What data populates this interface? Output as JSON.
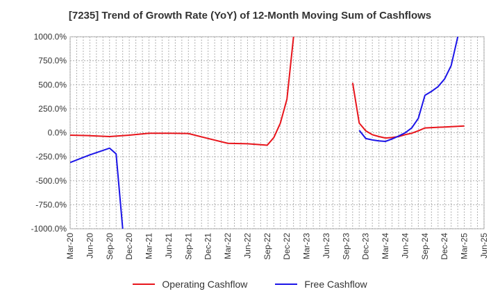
{
  "chart_data": {
    "type": "line",
    "title": "[7235]  Trend of Growth Rate (YoY) of 12-Month Moving Sum of Cashflows",
    "xlabel": "",
    "ylabel": "",
    "ylim": [
      -1000,
      1000
    ],
    "yticks": [
      "1000.0%",
      "750.0%",
      "500.0%",
      "250.0%",
      "0.0%",
      "-250.0%",
      "-500.0%",
      "-750.0%",
      "-1000.0%"
    ],
    "ytick_values": [
      1000,
      750,
      500,
      250,
      0,
      -250,
      -500,
      -750,
      -1000
    ],
    "xticks": [
      "Mar-20",
      "Jun-20",
      "Sep-20",
      "Dec-20",
      "Mar-21",
      "Jun-21",
      "Sep-21",
      "Dec-21",
      "Mar-22",
      "Jun-22",
      "Sep-22",
      "Dec-22",
      "Mar-23",
      "Jun-23",
      "Sep-23",
      "Dec-23",
      "Mar-24",
      "Jun-24",
      "Sep-24",
      "Dec-24",
      "Mar-25",
      "Jun-25"
    ],
    "grid": true,
    "legend_position": "bottom",
    "series": [
      {
        "name": "Operating Cashflow",
        "color": "#e8141b",
        "points": [
          [
            "Mar-20",
            -25
          ],
          [
            "Jun-20",
            -30
          ],
          [
            "Sep-20",
            -40
          ],
          [
            "Dec-20",
            -25
          ],
          [
            "Mar-21",
            -5
          ],
          [
            "Jun-21",
            -5
          ],
          [
            "Sep-21",
            -8
          ],
          [
            "Dec-21",
            -60
          ],
          [
            "Mar-22",
            -110
          ],
          [
            "Jun-22",
            -115
          ],
          [
            "Sep-22",
            -130
          ],
          [
            "Oct-22",
            -50
          ],
          [
            "Nov-22",
            100
          ],
          [
            "Dec-22",
            350
          ],
          [
            "Jan-23",
            1000
          ],
          [
            "Oct-23",
            520
          ],
          [
            "Nov-23",
            100
          ],
          [
            "Dec-23",
            20
          ],
          [
            "Jan-24",
            -20
          ],
          [
            "Feb-24",
            -40
          ],
          [
            "Mar-24",
            -55
          ],
          [
            "Apr-24",
            -50
          ],
          [
            "May-24",
            -40
          ],
          [
            "Jun-24",
            -20
          ],
          [
            "Jul-24",
            -5
          ],
          [
            "Aug-24",
            20
          ],
          [
            "Sep-24",
            50
          ],
          [
            "Dec-24",
            60
          ],
          [
            "Mar-25",
            70
          ]
        ]
      },
      {
        "name": "Free Cashflow",
        "color": "#1b14e8",
        "points": [
          [
            "Mar-20",
            -310
          ],
          [
            "Jun-20",
            -230
          ],
          [
            "Sep-20",
            -160
          ],
          [
            "Oct-20",
            -220
          ],
          [
            "Nov-20",
            -1000
          ],
          [
            "Nov-23",
            25
          ],
          [
            "Dec-23",
            -60
          ],
          [
            "Jan-24",
            -75
          ],
          [
            "Feb-24",
            -85
          ],
          [
            "Mar-24",
            -90
          ],
          [
            "Apr-24",
            -65
          ],
          [
            "May-24",
            -35
          ],
          [
            "Jun-24",
            0
          ],
          [
            "Jul-24",
            50
          ],
          [
            "Aug-24",
            150
          ],
          [
            "Sep-24",
            390
          ],
          [
            "Oct-24",
            430
          ],
          [
            "Nov-24",
            480
          ],
          [
            "Dec-24",
            560
          ],
          [
            "Jan-25",
            700
          ],
          [
            "Feb-25",
            1000
          ]
        ]
      }
    ]
  }
}
